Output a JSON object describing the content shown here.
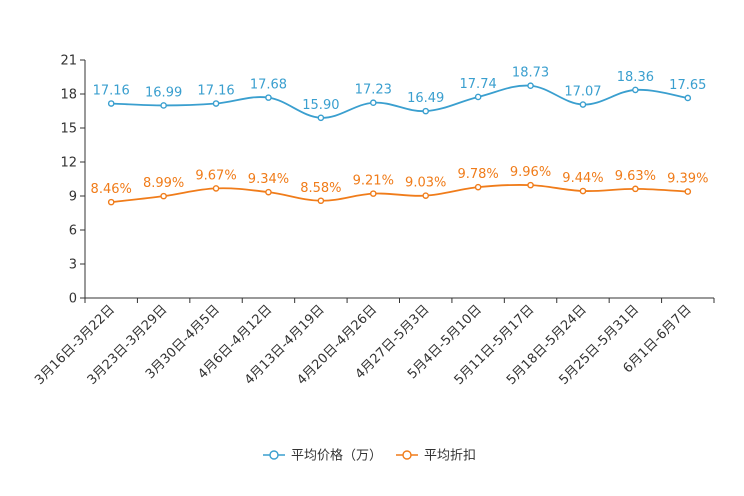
{
  "chart_data": {
    "type": "line",
    "title": "",
    "xlabel": "",
    "ylabel": "",
    "ylim": [
      0,
      21
    ],
    "yticks": [
      0,
      3,
      6,
      9,
      12,
      15,
      18,
      21
    ],
    "grid": false,
    "legend_position": "bottom-center",
    "categories": [
      "3月16日-3月22日",
      "3月23日-3月29日",
      "3月30日-4月5日",
      "4月6日-4月12日",
      "4月13日-4月19日",
      "4月20日-4月26日",
      "4月27日-5月3日",
      "5月4日-5月10日",
      "5月11日-5月17日",
      "5月18日-5月24日",
      "5月25日-5月31日",
      "6月1日-6月7日"
    ],
    "series": [
      {
        "name": "平均价格（万）",
        "color": "#3a9fcf",
        "values": [
          17.16,
          16.99,
          17.16,
          17.68,
          15.9,
          17.23,
          16.49,
          17.74,
          18.73,
          17.07,
          18.36,
          17.65
        ],
        "labels": [
          "17.16",
          "16.99",
          "17.16",
          "17.68",
          "15.90",
          "17.23",
          "16.49",
          "17.74",
          "18.73",
          "17.07",
          "18.36",
          "17.65"
        ]
      },
      {
        "name": "平均折扣",
        "color": "#f07c1a",
        "values": [
          8.46,
          8.99,
          9.67,
          9.34,
          8.58,
          9.21,
          9.03,
          9.78,
          9.96,
          9.44,
          9.63,
          9.39
        ],
        "labels": [
          "8.46%",
          "8.99%",
          "9.67%",
          "9.34%",
          "8.58%",
          "9.21%",
          "9.03%",
          "9.78%",
          "9.96%",
          "9.44%",
          "9.63%",
          "9.39%"
        ]
      }
    ]
  }
}
